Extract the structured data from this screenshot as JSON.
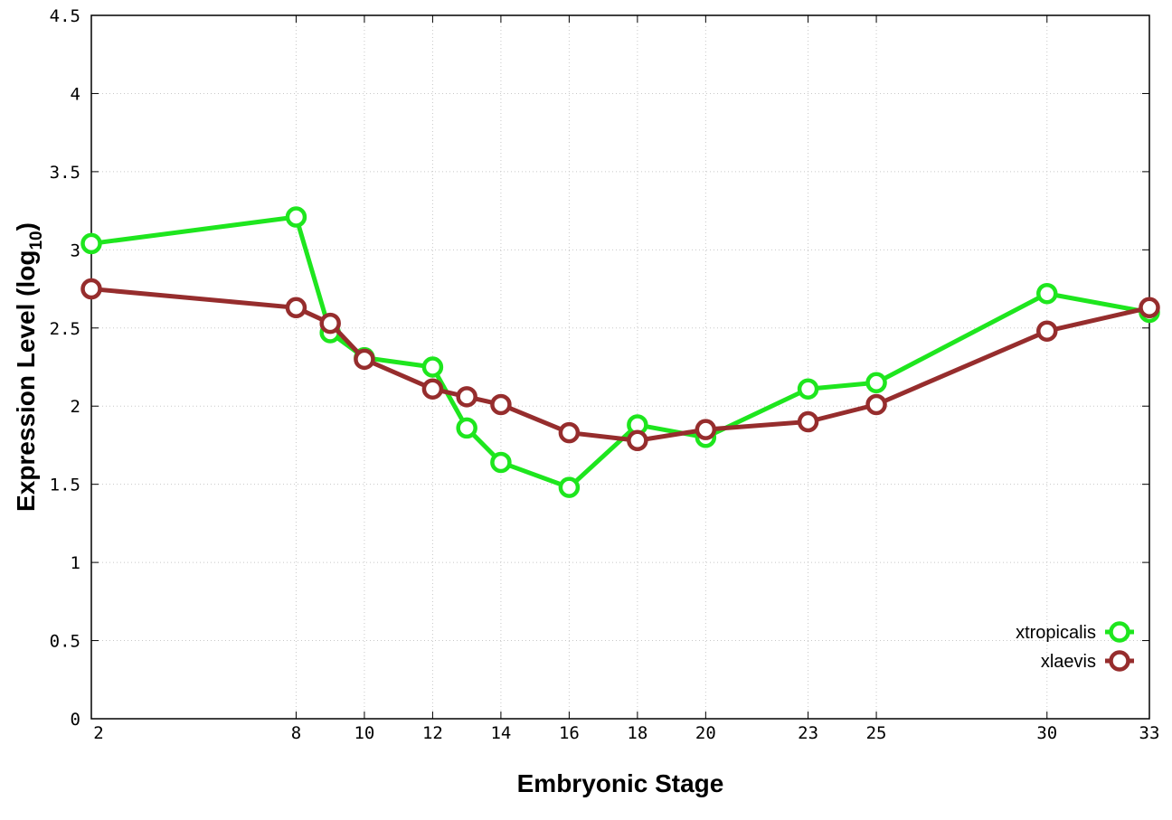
{
  "chart_data": {
    "type": "line",
    "xlabel": "Embryonic Stage",
    "ylabel": {
      "main": "Expression Level (log",
      "sub": "10",
      "close": ")"
    },
    "ylim": [
      0,
      4.5
    ],
    "xlim": [
      2,
      33
    ],
    "x_ticks": [
      2,
      8,
      10,
      12,
      14,
      16,
      18,
      20,
      23,
      25,
      30,
      33
    ],
    "y_ticks": [
      "0",
      "0.5",
      "1",
      "1.5",
      "2",
      "2.5",
      "3",
      "3.5",
      "4",
      "4.5"
    ],
    "grid": true,
    "legend_position": "bottom-right",
    "x": [
      2,
      8,
      9,
      10,
      12,
      13,
      14,
      16,
      18,
      20,
      23,
      25,
      30,
      33
    ],
    "series": [
      {
        "name": "xtropicalis",
        "color": "#1ee61e",
        "values": [
          3.04,
          3.21,
          2.47,
          2.31,
          2.25,
          1.86,
          1.64,
          1.48,
          1.88,
          1.8,
          2.11,
          2.15,
          2.72,
          2.6
        ]
      },
      {
        "name": "xlaevis",
        "color": "#962d2d",
        "values": [
          2.75,
          2.63,
          2.53,
          2.3,
          2.11,
          2.06,
          2.01,
          1.83,
          1.78,
          1.85,
          1.9,
          2.01,
          2.48,
          2.63
        ]
      }
    ]
  }
}
